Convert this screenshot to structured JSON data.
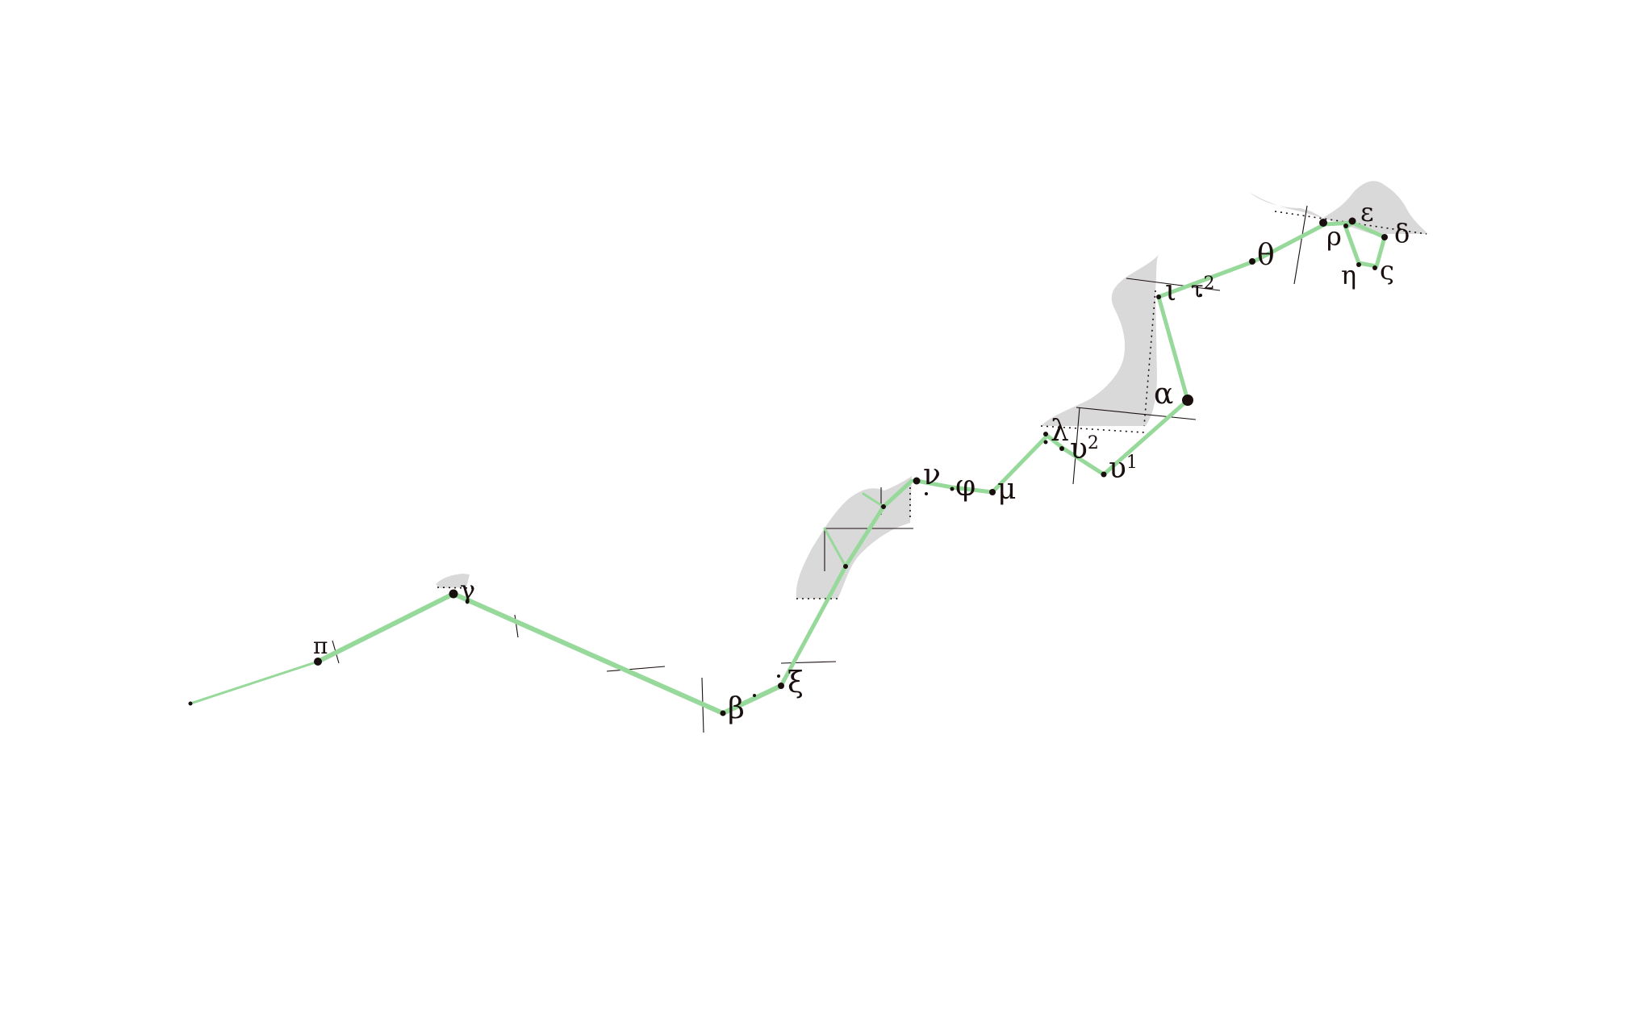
{
  "colors": {
    "background": "#ffffff",
    "constellation_line": "#97d99a",
    "star": "#1a0f0f",
    "milky_way": "#d9d9d9",
    "grid_line": "#1a0f0f"
  },
  "stars": [
    {
      "id": "pi",
      "label": "π",
      "sup": ""
    },
    {
      "id": "gamma",
      "label": "γ",
      "sup": ""
    },
    {
      "id": "beta",
      "label": "β",
      "sup": ""
    },
    {
      "id": "xi",
      "label": "ξ",
      "sup": ""
    },
    {
      "id": "nu",
      "label": "ν",
      "sup": ""
    },
    {
      "id": "phi",
      "label": "φ",
      "sup": ""
    },
    {
      "id": "mu",
      "label": "μ",
      "sup": ""
    },
    {
      "id": "lambda",
      "label": "λ",
      "sup": ""
    },
    {
      "id": "upsilon2",
      "label": "υ",
      "sup": "2"
    },
    {
      "id": "upsilon1",
      "label": "υ",
      "sup": "1"
    },
    {
      "id": "alpha",
      "label": "α",
      "sup": ""
    },
    {
      "id": "iota",
      "label": "ι",
      "sup": ""
    },
    {
      "id": "tau2",
      "label": "τ",
      "sup": "2"
    },
    {
      "id": "theta",
      "label": "θ",
      "sup": ""
    },
    {
      "id": "rho",
      "label": "ρ",
      "sup": ""
    },
    {
      "id": "epsilon",
      "label": "ε",
      "sup": ""
    },
    {
      "id": "delta",
      "label": "δ",
      "sup": ""
    },
    {
      "id": "eta",
      "label": "η",
      "sup": ""
    },
    {
      "id": "sigma",
      "label": "ς",
      "sup": ""
    }
  ]
}
